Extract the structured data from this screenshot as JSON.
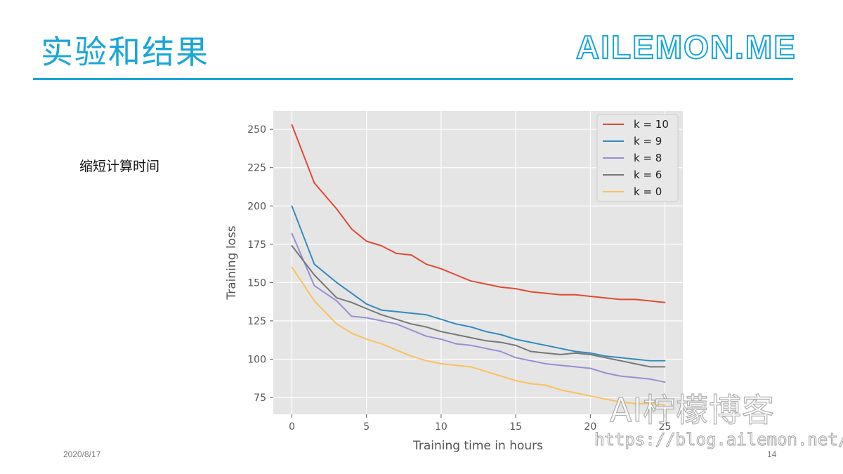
{
  "slide": {
    "title": "实验和结果",
    "brand": "AILEMON.ME",
    "bullet": "缩短计算时间",
    "date": "2020/8/17",
    "page_number": "14",
    "watermark": "AI柠檬博客",
    "watermark_url": "https://blog.ailemon.net/",
    "accent_color": "#1aa6d8"
  },
  "chart_data": {
    "type": "line",
    "title": "",
    "xlabel": "Training time in hours",
    "ylabel": "Training loss",
    "xlim": [
      -1.25,
      26.2
    ],
    "ylim": [
      64,
      262
    ],
    "xticks": [
      0,
      5,
      10,
      15,
      20,
      25
    ],
    "yticks": [
      75,
      100,
      125,
      150,
      175,
      200,
      225,
      250
    ],
    "grid": true,
    "legend_position": "top-right",
    "series": [
      {
        "name": "k = 10",
        "color": "#e24a33",
        "x": [
          0,
          1.5,
          3,
          4,
          5,
          6,
          7,
          8,
          9,
          10,
          11,
          12,
          13,
          14,
          15,
          16,
          17,
          18,
          19,
          20,
          21,
          22,
          23,
          24,
          25
        ],
        "y": [
          253,
          215,
          198,
          185,
          177,
          174,
          169,
          168,
          162,
          159,
          155,
          151,
          149,
          147,
          146,
          144,
          143,
          142,
          142,
          141,
          140,
          139,
          139,
          138,
          137
        ]
      },
      {
        "name": "k = 9",
        "color": "#348abd",
        "x": [
          0,
          1.5,
          3,
          4,
          5,
          6,
          7,
          8,
          9,
          10,
          11,
          12,
          13,
          14,
          15,
          16,
          17,
          18,
          19,
          20,
          21,
          22,
          23,
          24,
          25
        ],
        "y": [
          200,
          162,
          150,
          143,
          136,
          132,
          131,
          130,
          129,
          126,
          123,
          121,
          118,
          116,
          113,
          111,
          109,
          107,
          105,
          104,
          102,
          101,
          100,
          99,
          99
        ]
      },
      {
        "name": "k = 8",
        "color": "#988ed5",
        "x": [
          0,
          1.5,
          3,
          4,
          5,
          6,
          7,
          8,
          9,
          10,
          11,
          12,
          13,
          14,
          15,
          16,
          17,
          18,
          19,
          20,
          21,
          22,
          23,
          24,
          25
        ],
        "y": [
          182,
          148,
          138,
          128,
          127,
          125,
          123,
          119,
          115,
          113,
          110,
          109,
          107,
          105,
          101,
          99,
          97,
          96,
          95,
          94,
          91,
          89,
          88,
          87,
          85
        ]
      },
      {
        "name": "k = 6",
        "color": "#777777",
        "x": [
          0,
          1.5,
          3,
          4,
          5,
          6,
          7,
          8,
          9,
          10,
          11,
          12,
          13,
          14,
          15,
          16,
          17,
          18,
          19,
          20,
          21,
          22,
          23,
          24,
          25
        ],
        "y": [
          174,
          155,
          140,
          137,
          133,
          129,
          126,
          123,
          121,
          118,
          116,
          114,
          112,
          111,
          109,
          105,
          104,
          103,
          104,
          103,
          101,
          99,
          97,
          95,
          95
        ]
      },
      {
        "name": "k = 0",
        "color": "#fbc15e",
        "x": [
          0,
          1.5,
          3,
          4,
          5,
          6,
          7,
          8,
          9,
          10,
          11,
          12,
          13,
          14,
          15,
          16,
          17,
          18,
          19,
          20,
          21,
          22,
          23,
          24,
          25
        ],
        "y": [
          160,
          138,
          123,
          117,
          113,
          110,
          106,
          102,
          99,
          97,
          96,
          95,
          92,
          89,
          86,
          84,
          83,
          80,
          78,
          76,
          74,
          72,
          71,
          71,
          70
        ]
      }
    ]
  }
}
